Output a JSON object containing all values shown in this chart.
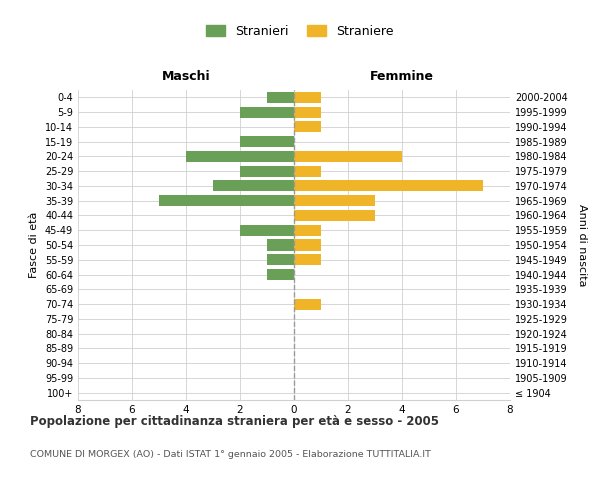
{
  "age_groups": [
    "100+",
    "95-99",
    "90-94",
    "85-89",
    "80-84",
    "75-79",
    "70-74",
    "65-69",
    "60-64",
    "55-59",
    "50-54",
    "45-49",
    "40-44",
    "35-39",
    "30-34",
    "25-29",
    "20-24",
    "15-19",
    "10-14",
    "5-9",
    "0-4"
  ],
  "birth_years": [
    "≤ 1904",
    "1905-1909",
    "1910-1914",
    "1915-1919",
    "1920-1924",
    "1925-1929",
    "1930-1934",
    "1935-1939",
    "1940-1944",
    "1945-1949",
    "1950-1954",
    "1955-1959",
    "1960-1964",
    "1965-1969",
    "1970-1974",
    "1975-1979",
    "1980-1984",
    "1985-1989",
    "1990-1994",
    "1995-1999",
    "2000-2004"
  ],
  "males": [
    0,
    0,
    0,
    0,
    0,
    0,
    0,
    0,
    1,
    1,
    1,
    2,
    0,
    5,
    3,
    2,
    4,
    2,
    0,
    2,
    1
  ],
  "females": [
    0,
    0,
    0,
    0,
    0,
    0,
    1,
    0,
    0,
    1,
    1,
    1,
    3,
    3,
    7,
    1,
    4,
    0,
    1,
    1,
    1
  ],
  "male_color": "#6a9f58",
  "female_color": "#f0b429",
  "bg_color": "#ffffff",
  "grid_color": "#d0d0d0",
  "center_line_color": "#999999",
  "title": "Popolazione per cittadinanza straniera per età e sesso - 2005",
  "subtitle": "COMUNE DI MORGEX (AO) - Dati ISTAT 1° gennaio 2005 - Elaborazione TUTTITALIA.IT",
  "xlabel_left": "Maschi",
  "xlabel_right": "Femmine",
  "ylabel_left": "Fasce di età",
  "ylabel_right": "Anni di nascita",
  "legend_male": "Stranieri",
  "legend_female": "Straniere",
  "xlim": 8,
  "bar_height": 0.75
}
